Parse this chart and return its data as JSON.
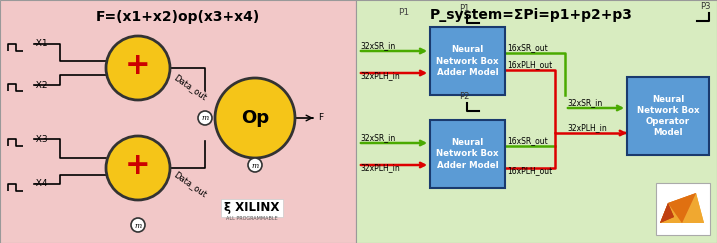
{
  "left_bg": "#f2c8c8",
  "right_bg": "#d8ecc0",
  "left_title": "F=(x1+x2)op(x3+x4)",
  "right_title": "P_system=ΣPi=p1+p2+p3",
  "right_title_p1": "P1",
  "circle_color": "#f5c518",
  "circle_edge": "#333333",
  "plus_color": "#cc0000",
  "op_text": "Op",
  "box_color": "#5b9bd5",
  "box_edge": "#1a3a6e",
  "box_text_adder": "Neural\nNetwork Box\nAdder Model",
  "box_text_operator": "Neural\nNetwork Box\nOperator\nModel",
  "green_line": "#4aaa00",
  "red_line": "#dd0000",
  "labels_left": [
    "-X1",
    "-X2",
    "-X3",
    "-X4"
  ],
  "sr_in_top": "32xSR_in",
  "plh_in_top": "32xPLH_in",
  "sr_out_top": "16xSR_out",
  "plh_out_top": "16xPLH_out",
  "sr_in_bot": "32xSR_in",
  "plh_in_bot": "32xPLH_in",
  "sr_out_bot": "16xSR_out",
  "plh_out_bot": "16xPLH_out",
  "op_sr_in": "32xSR_in",
  "op_plh_in": "32xPLH_in",
  "p1": "P1",
  "p2": "P2",
  "p3": "P3"
}
